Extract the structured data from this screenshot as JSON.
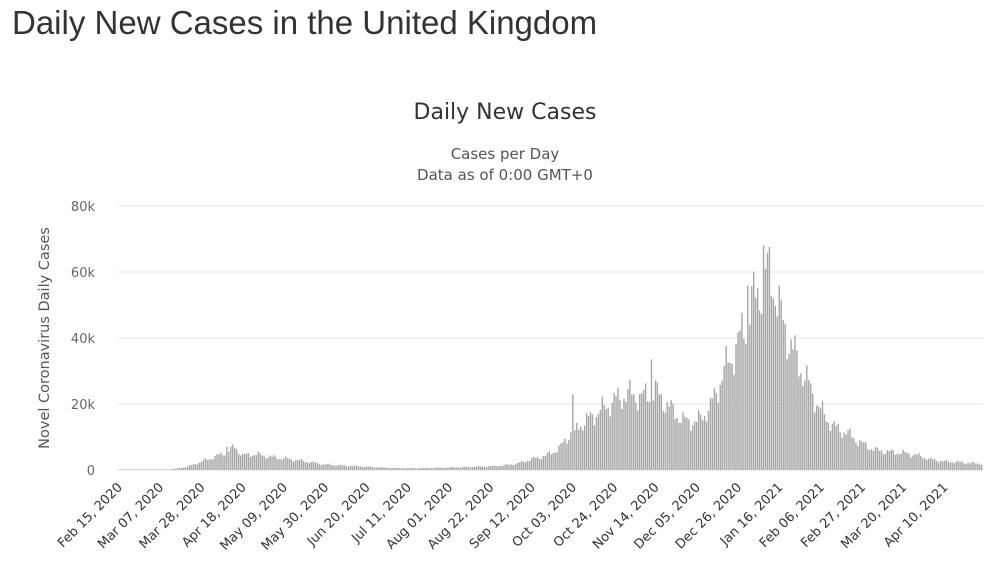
{
  "page": {
    "heading": "Daily New Cases in the United Kingdom"
  },
  "colors": {
    "bar": "#a6a6a6",
    "grid": "#e6e6e6",
    "text": "#333333"
  },
  "chart_data": {
    "type": "bar",
    "title": "Daily New Cases",
    "subtitle_lines": [
      "Cases per Day",
      "Data as of 0:00 GMT+0"
    ],
    "xlabel": "",
    "ylabel": "Novel Coronavirus Daily Cases",
    "ylim": [
      0,
      80000
    ],
    "y_ticks": [
      0,
      20000,
      40000,
      60000,
      80000
    ],
    "y_tick_labels": [
      "0",
      "20k",
      "40k",
      "60k",
      "80k"
    ],
    "x_tick_labels": [
      "Feb 15, 2020",
      "Mar 07, 2020",
      "Mar 28, 2020",
      "Apr 18, 2020",
      "May 09, 2020",
      "May 30, 2020",
      "Jun 20, 2020",
      "Jul 11, 2020",
      "Aug 01, 2020",
      "Aug 22, 2020",
      "Sep 12, 2020",
      "Oct 03, 2020",
      "Oct 24, 2020",
      "Nov 14, 2020",
      "Dec 05, 2020",
      "Dec 26, 2020",
      "Jan 16, 2021",
      "Feb 06, 2021",
      "Feb 27, 2021",
      "Mar 20, 2021",
      "Apr 10, 2021"
    ],
    "grid": true,
    "legend": "none",
    "series": [
      {
        "x_start": "2020-02-15",
        "x_end": "2021-04-29",
        "key_points": [
          [
            "2020-02-15",
            0
          ],
          [
            "2020-03-07",
            50
          ],
          [
            "2020-03-14",
            300
          ],
          [
            "2020-03-21",
            1000
          ],
          [
            "2020-03-28",
            2500
          ],
          [
            "2020-04-04",
            4000
          ],
          [
            "2020-04-10",
            5500
          ],
          [
            "2020-04-14",
            7000
          ],
          [
            "2020-04-18",
            4500
          ],
          [
            "2020-04-25",
            4800
          ],
          [
            "2020-05-02",
            4000
          ],
          [
            "2020-05-09",
            3500
          ],
          [
            "2020-05-16",
            3000
          ],
          [
            "2020-05-23",
            2300
          ],
          [
            "2020-05-30",
            1700
          ],
          [
            "2020-06-06",
            1400
          ],
          [
            "2020-06-13",
            1200
          ],
          [
            "2020-06-20",
            1000
          ],
          [
            "2020-06-27",
            800
          ],
          [
            "2020-07-04",
            600
          ],
          [
            "2020-07-11",
            550
          ],
          [
            "2020-07-18",
            550
          ],
          [
            "2020-07-25",
            650
          ],
          [
            "2020-08-01",
            750
          ],
          [
            "2020-08-08",
            900
          ],
          [
            "2020-08-15",
            1000
          ],
          [
            "2020-08-22",
            1100
          ],
          [
            "2020-08-29",
            1400
          ],
          [
            "2020-09-05",
            2000
          ],
          [
            "2020-09-12",
            3300
          ],
          [
            "2020-09-19",
            4200
          ],
          [
            "2020-09-26",
            6500
          ],
          [
            "2020-10-03",
            12000
          ],
          [
            "2020-10-10",
            15000
          ],
          [
            "2020-10-17",
            18000
          ],
          [
            "2020-10-24",
            21000
          ],
          [
            "2020-10-31",
            23000
          ],
          [
            "2020-11-07",
            22000
          ],
          [
            "2020-11-14",
            24000
          ],
          [
            "2020-11-21",
            19000
          ],
          [
            "2020-11-28",
            15000
          ],
          [
            "2020-12-05",
            14500
          ],
          [
            "2020-12-12",
            19000
          ],
          [
            "2020-12-19",
            30000
          ],
          [
            "2020-12-26",
            38000
          ],
          [
            "2021-01-02",
            50000
          ],
          [
            "2021-01-08",
            58000
          ],
          [
            "2021-01-12",
            60000
          ],
          [
            "2021-01-16",
            48000
          ],
          [
            "2021-01-23",
            36000
          ],
          [
            "2021-01-30",
            27000
          ],
          [
            "2021-02-06",
            18000
          ],
          [
            "2021-02-13",
            13000
          ],
          [
            "2021-02-20",
            11000
          ],
          [
            "2021-02-27",
            8000
          ],
          [
            "2021-03-06",
            6000
          ],
          [
            "2021-03-13",
            5500
          ],
          [
            "2021-03-20",
            5200
          ],
          [
            "2021-03-27",
            4500
          ],
          [
            "2021-04-03",
            3200
          ],
          [
            "2021-04-10",
            2600
          ],
          [
            "2021-04-17",
            2400
          ],
          [
            "2021-04-24",
            2100
          ],
          [
            "2021-04-29",
            1900
          ]
        ],
        "spikes": [
          [
            "2020-04-10",
            7100
          ],
          [
            "2020-10-03",
            22900
          ],
          [
            "2020-10-04",
            12000
          ],
          [
            "2020-11-12",
            33500
          ],
          [
            "2020-12-31",
            55900
          ],
          [
            "2021-01-08",
            68100
          ]
        ]
      }
    ]
  }
}
